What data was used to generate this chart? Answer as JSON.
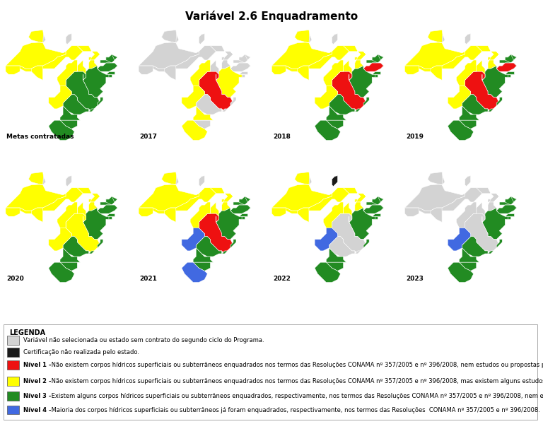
{
  "title": "Variável 2.6 Enquadramento",
  "panels": [
    {
      "label": "Metas contratadas"
    },
    {
      "label": "2017"
    },
    {
      "label": "2018"
    },
    {
      "label": "2019"
    },
    {
      "label": "2020"
    },
    {
      "label": "2021"
    },
    {
      "label": "2022"
    },
    {
      "label": "2023"
    }
  ],
  "color_map": {
    "gray": "#D3D3D3",
    "black": "#1A1A1A",
    "red": "#EE1111",
    "yellow": "#FFFF00",
    "green": "#228B22",
    "blue": "#4169E1"
  },
  "state_colors": {
    "metas": {
      "AC": "yellow",
      "AL": "green",
      "AM": "yellow",
      "AP": "gray",
      "BA": "green",
      "CE": "green",
      "DF": "yellow",
      "ES": "green",
      "GO": "yellow",
      "MA": "yellow",
      "MG": "green",
      "MS": "yellow",
      "MT": "yellow",
      "PA": "yellow",
      "PB": "green",
      "PE": "green",
      "PI": "yellow",
      "PR": "green",
      "RJ": "green",
      "RN": "green",
      "RO": "yellow",
      "RR": "gray",
      "RS": "green",
      "SC": "green",
      "SE": "green",
      "SP": "green",
      "TO": "yellow"
    },
    "2017": {
      "AC": "gray",
      "AL": "gray",
      "AM": "gray",
      "AP": "gray",
      "BA": "yellow",
      "CE": "gray",
      "DF": "gray",
      "ES": "gray",
      "GO": "yellow",
      "MA": "gray",
      "MG": "red",
      "MS": "yellow",
      "MT": "yellow",
      "PA": "gray",
      "PB": "gray",
      "PE": "gray",
      "PI": "gray",
      "PR": "yellow",
      "RJ": "gray",
      "RN": "gray",
      "RO": "gray",
      "RR": "gray",
      "RS": "yellow",
      "SC": "gray",
      "SE": "gray",
      "SP": "gray",
      "TO": "gray"
    },
    "2018": {
      "AC": "yellow",
      "AL": "green",
      "AM": "yellow",
      "AP": "gray",
      "BA": "green",
      "CE": "green",
      "DF": "yellow",
      "ES": "green",
      "GO": "yellow",
      "MA": "yellow",
      "MG": "red",
      "MS": "yellow",
      "MT": "yellow",
      "PA": "yellow",
      "PB": "green",
      "PE": "red",
      "PI": "yellow",
      "PR": "green",
      "RJ": "green",
      "RN": "green",
      "RO": "yellow",
      "RR": "gray",
      "RS": "green",
      "SC": "green",
      "SE": "green",
      "SP": "green",
      "TO": "yellow"
    },
    "2019": {
      "AC": "yellow",
      "AL": "green",
      "AM": "yellow",
      "AP": "gray",
      "BA": "green",
      "CE": "green",
      "DF": "yellow",
      "ES": "green",
      "GO": "yellow",
      "MA": "yellow",
      "MG": "red",
      "MS": "yellow",
      "MT": "yellow",
      "PA": "yellow",
      "PB": "green",
      "PE": "red",
      "PI": "yellow",
      "PR": "green",
      "RJ": "green",
      "RN": "green",
      "RO": "yellow",
      "RR": "gray",
      "RS": "green",
      "SC": "green",
      "SE": "green",
      "SP": "green",
      "TO": "yellow"
    },
    "2020": {
      "AC": "yellow",
      "AL": "green",
      "AM": "yellow",
      "AP": "gray",
      "BA": "green",
      "CE": "green",
      "DF": "yellow",
      "ES": "green",
      "GO": "yellow",
      "MA": "yellow",
      "MG": "yellow",
      "MS": "yellow",
      "MT": "yellow",
      "PA": "yellow",
      "PB": "green",
      "PE": "green",
      "PI": "yellow",
      "PR": "green",
      "RJ": "green",
      "RN": "green",
      "RO": "yellow",
      "RR": "gray",
      "RS": "green",
      "SC": "green",
      "SE": "green",
      "SP": "green",
      "TO": "yellow"
    },
    "2021": {
      "AC": "yellow",
      "AL": "green",
      "AM": "yellow",
      "AP": "gray",
      "BA": "green",
      "CE": "green",
      "DF": "yellow",
      "ES": "green",
      "GO": "yellow",
      "MA": "yellow",
      "MG": "red",
      "MS": "blue",
      "MT": "yellow",
      "PA": "yellow",
      "PB": "green",
      "PE": "green",
      "PI": "yellow",
      "PR": "green",
      "RJ": "green",
      "RN": "green",
      "RO": "yellow",
      "RR": "gray",
      "RS": "blue",
      "SC": "green",
      "SE": "green",
      "SP": "green",
      "TO": "yellow"
    },
    "2022": {
      "AC": "yellow",
      "AL": "green",
      "AM": "yellow",
      "AP": "black",
      "BA": "green",
      "CE": "green",
      "DF": "yellow",
      "ES": "green",
      "GO": "yellow",
      "MA": "yellow",
      "MG": "gray",
      "MS": "blue",
      "MT": "yellow",
      "PA": "yellow",
      "PB": "green",
      "PE": "green",
      "PI": "yellow",
      "PR": "green",
      "RJ": "gray",
      "RN": "green",
      "RO": "yellow",
      "RR": "gray",
      "RS": "green",
      "SC": "green",
      "SE": "green",
      "SP": "gray",
      "TO": "yellow"
    },
    "2023": {
      "AC": "gray",
      "AL": "green",
      "AM": "gray",
      "AP": "gray",
      "BA": "green",
      "CE": "green",
      "DF": "gray",
      "ES": "green",
      "GO": "gray",
      "MA": "gray",
      "MG": "gray",
      "MS": "blue",
      "MT": "gray",
      "PA": "gray",
      "PB": "green",
      "PE": "green",
      "PI": "gray",
      "PR": "green",
      "RJ": "green",
      "RN": "green",
      "RO": "gray",
      "RR": "gray",
      "RS": "green",
      "SC": "green",
      "SE": "green",
      "SP": "green",
      "TO": "gray"
    }
  },
  "legend_items": [
    {
      "color": "#D3D3D3",
      "bold": "",
      "text": "Variável não selecionada ou estado sem contrato do segundo ciclo do Programa."
    },
    {
      "color": "#1A1A1A",
      "bold": "",
      "text": "Certificação não realizada pelo estado."
    },
    {
      "color": "#EE1111",
      "bold": "Nível 1 -",
      "text": " Não existem corpos hídricos superficiais ou subterrâneos enquadrados nos termos das Resoluções CONAMA nº 357/2005 e nº 396/2008, nem estudos ou propostas para enquadramento das águas subterrâneas ou superficiais de domínio estadual."
    },
    {
      "color": "#FFFF00",
      "bold": "Nível 2 -",
      "text": " Não existem corpos hídricos superficiais ou subterrâneos enquadrados nos termos das Resoluções CONAMA nº 357/2005 e nº 396/2008, mas existem alguns estudos ou propostas para enquadramento das águas subterrâneas ou superficiais de domínio estadual."
    },
    {
      "color": "#228B22",
      "bold": "Nível 3 -",
      "text": " Existem alguns corpos hídricos superficiais ou subterrâneos enquadrados, respectivamente, nos termos das Resoluções CONAMA nº 357/2005 e nº 396/2008, nem estudos ou propostas para enquadramento das águas subterrâneas ou superficiais de domínio estadual."
    },
    {
      "color": "#4169E1",
      "bold": "Nível 4 -",
      "text": " Maioria dos corpos hídricos superficiais ou subterrâneos já foram enquadrados, respectivamente, nos termos das Resoluções  CONAMA nº 357/2005 e nº 396/2008."
    }
  ]
}
